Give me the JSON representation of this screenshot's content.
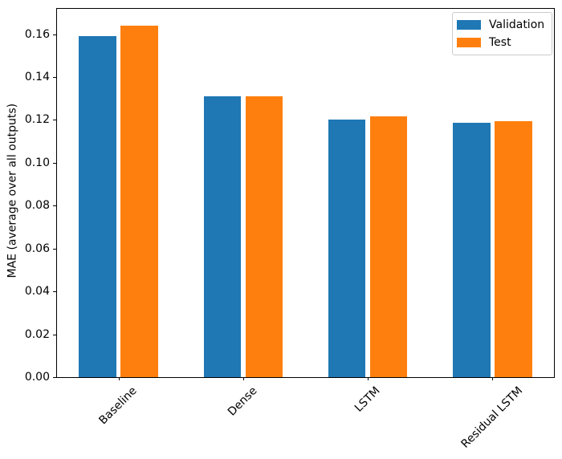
{
  "chart_data": {
    "type": "bar",
    "categories": [
      "Baseline",
      "Dense",
      "LSTM",
      "Residual LSTM"
    ],
    "series": [
      {
        "name": "Validation",
        "color": "#1f77b4",
        "values": [
          0.159,
          0.131,
          0.12,
          0.1185
        ]
      },
      {
        "name": "Test",
        "color": "#ff7f0e",
        "values": [
          0.164,
          0.1312,
          0.1218,
          0.1194
        ]
      }
    ],
    "title": "",
    "xlabel": "",
    "ylabel": "MAE (average over all outputs)",
    "ylim": [
      0,
      0.1722
    ],
    "yticks": [
      0.0,
      0.02,
      0.04,
      0.06,
      0.08,
      0.1,
      0.12,
      0.14,
      0.16
    ],
    "ytick_decimals": 2,
    "xtick_rotation_deg": 45,
    "grid": false,
    "legend_position": "upper right",
    "bar_group_width_fraction": 0.3,
    "axis_color": "#000000",
    "background_color": "#ffffff"
  },
  "legend": {
    "items": [
      {
        "label": "Validation",
        "color": "#1f77b4"
      },
      {
        "label": "Test",
        "color": "#ff7f0e"
      }
    ]
  }
}
